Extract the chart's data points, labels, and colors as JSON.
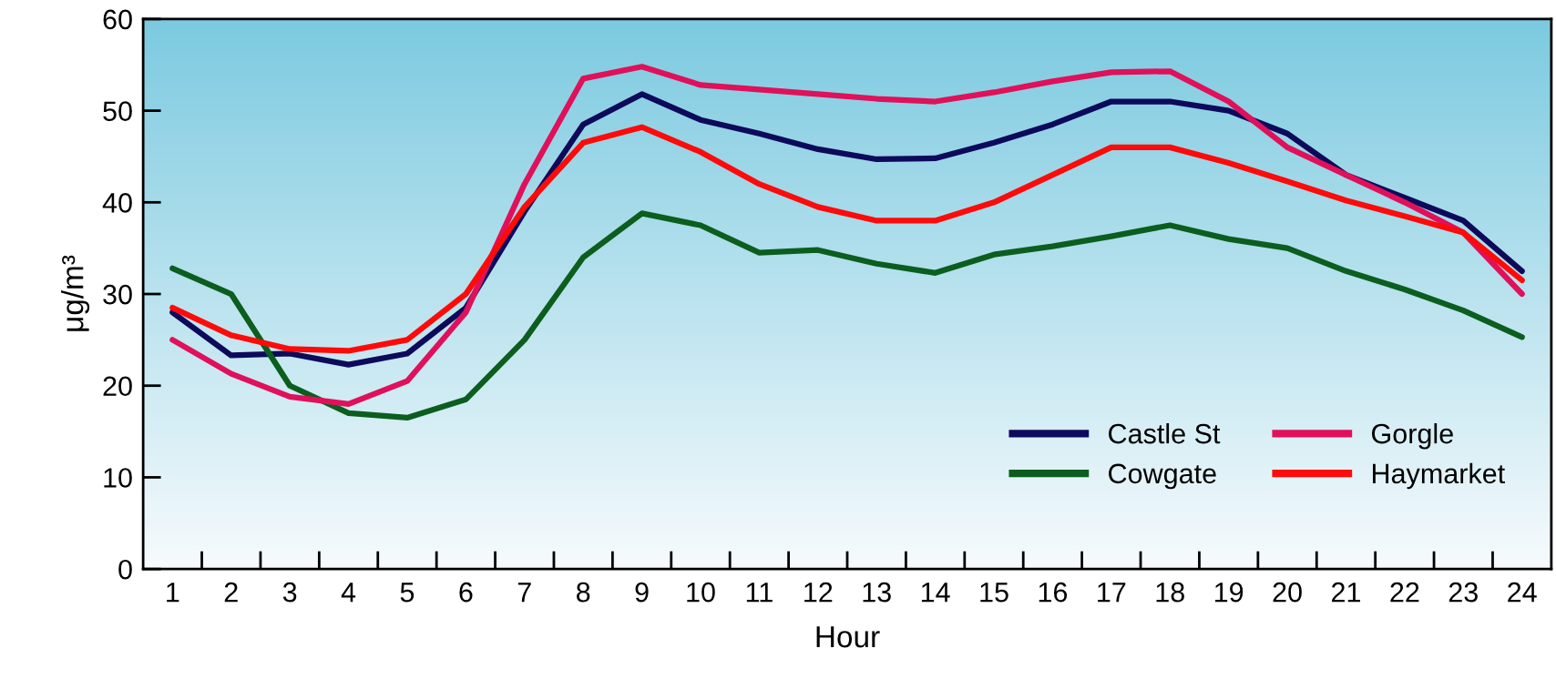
{
  "chart_data": {
    "type": "line",
    "xlabel": "Hour",
    "ylabel": "μg/m³",
    "x": [
      1,
      2,
      3,
      4,
      5,
      6,
      7,
      8,
      9,
      10,
      11,
      12,
      13,
      14,
      15,
      16,
      17,
      18,
      19,
      20,
      21,
      22,
      23,
      24
    ],
    "xlim": [
      0.5,
      24.5
    ],
    "xticks": [
      1,
      2,
      3,
      4,
      5,
      6,
      7,
      8,
      9,
      10,
      11,
      12,
      13,
      14,
      15,
      16,
      17,
      18,
      19,
      20,
      21,
      22,
      23,
      24
    ],
    "ylim": [
      0,
      60
    ],
    "yticks": [
      0,
      10,
      20,
      30,
      40,
      50,
      60
    ],
    "grid": false,
    "legend": "bottom right",
    "marker": "none",
    "line_style": "solid",
    "series": [
      {
        "name": "Castle St",
        "color": "#0d0a5c",
        "values": [
          28,
          23.3,
          23.5,
          22.3,
          23.5,
          28.5,
          39,
          48.5,
          51.8,
          49,
          47.5,
          45.8,
          44.7,
          44.8,
          46.5,
          48.5,
          51,
          51,
          50,
          47.5,
          43,
          40.5,
          38,
          32.5
        ]
      },
      {
        "name": "Cowgate",
        "color": "#0b5e1e",
        "values": [
          32.8,
          30,
          20,
          17,
          16.5,
          18.5,
          25,
          34,
          38.8,
          37.5,
          34.5,
          34.8,
          33.3,
          32.3,
          34.3,
          35.2,
          36.3,
          37.5,
          36,
          35,
          32.5,
          30.5,
          28.2,
          25.3
        ]
      },
      {
        "name": "Gorgle",
        "color": "#e0105a",
        "values": [
          25,
          21.3,
          18.8,
          18,
          20.5,
          28,
          42,
          53.5,
          54.8,
          52.8,
          52.3,
          51.8,
          51.3,
          51,
          52,
          53.2,
          54.2,
          54.3,
          51,
          46,
          43,
          40,
          36.7,
          30
        ]
      },
      {
        "name": "Haymarket",
        "color": "#ff0a0a",
        "values": [
          28.5,
          25.5,
          24,
          23.8,
          25,
          30,
          39.5,
          46.5,
          48.2,
          45.5,
          42,
          39.5,
          38,
          38,
          40,
          43,
          46,
          46,
          44.3,
          42.3,
          40.2,
          38.5,
          36.7,
          31.5
        ]
      }
    ]
  }
}
